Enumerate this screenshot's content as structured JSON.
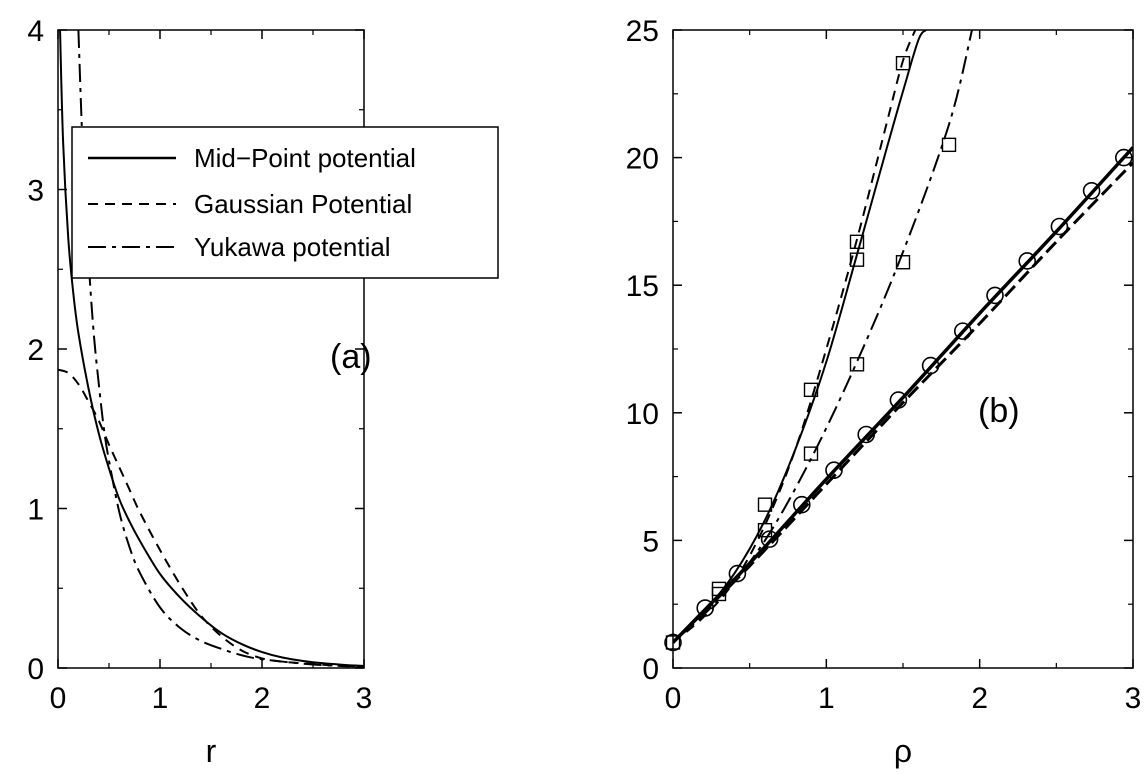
{
  "chart_data": [
    {
      "type": "line",
      "panel_label": "(a)",
      "xlabel": "r",
      "ylabel": "",
      "xlim": [
        0,
        3
      ],
      "ylim": [
        0,
        4
      ],
      "x_ticks": [
        "0",
        "1",
        "2",
        "3"
      ],
      "y_ticks": [
        "0",
        "1",
        "2",
        "3",
        "4"
      ],
      "x_tick_values": [
        0,
        1,
        2,
        3
      ],
      "y_tick_values": [
        0,
        1,
        2,
        3,
        4
      ],
      "legend": "top-right",
      "series": [
        {
          "name": "Mid−Point potential",
          "style": "solid",
          "x": [
            0.02,
            0.05,
            0.1,
            0.15,
            0.2,
            0.3,
            0.4,
            0.5,
            0.6,
            0.7,
            0.8,
            1.0,
            1.2,
            1.4,
            1.6,
            1.8,
            2.0,
            2.2,
            2.5,
            2.8,
            3.0
          ],
          "y": [
            4.0,
            3.3,
            2.7,
            2.35,
            2.1,
            1.75,
            1.47,
            1.25,
            1.06,
            0.92,
            0.8,
            0.59,
            0.44,
            0.32,
            0.22,
            0.15,
            0.1,
            0.066,
            0.036,
            0.02,
            0.013
          ]
        },
        {
          "name": "Gaussian Potential",
          "style": "dashed",
          "x": [
            0.0,
            0.1,
            0.2,
            0.3,
            0.4,
            0.5,
            0.6,
            0.7,
            0.8,
            1.0,
            1.2,
            1.4,
            1.6,
            1.8,
            2.0,
            2.2,
            2.5,
            2.8,
            3.0
          ],
          "y": [
            1.87,
            1.85,
            1.78,
            1.67,
            1.55,
            1.4,
            1.26,
            1.12,
            0.98,
            0.74,
            0.52,
            0.33,
            0.2,
            0.11,
            0.06,
            0.04,
            0.025,
            0.012,
            0.008
          ]
        },
        {
          "name": "Yukawa potential",
          "style": "dashdot",
          "x": [
            0.2,
            0.23,
            0.26,
            0.3,
            0.35,
            0.4,
            0.45,
            0.5,
            0.6,
            0.7,
            0.8,
            1.0,
            1.2,
            1.4,
            1.6,
            1.8,
            2.0,
            2.5,
            3.0
          ],
          "y": [
            4.0,
            3.45,
            3.0,
            2.55,
            2.1,
            1.78,
            1.5,
            1.3,
            0.98,
            0.76,
            0.6,
            0.38,
            0.25,
            0.17,
            0.12,
            0.08,
            0.055,
            0.022,
            0.008
          ]
        }
      ]
    },
    {
      "type": "line",
      "panel_label": "(b)",
      "xlabel": "ρ",
      "ylabel": "",
      "xlim": [
        0,
        3
      ],
      "ylim": [
        0,
        25
      ],
      "x_ticks": [
        "0",
        "1",
        "2",
        "3"
      ],
      "y_ticks": [
        "0",
        "5",
        "10",
        "15",
        "20",
        "25"
      ],
      "x_tick_values": [
        0,
        1,
        2,
        3
      ],
      "y_tick_values": [
        0,
        5,
        10,
        15,
        20,
        25
      ],
      "series": [
        {
          "style": "solid",
          "x": [
            0.0,
            0.2,
            0.4,
            0.6,
            0.8,
            1.0,
            1.2,
            1.4,
            1.5,
            1.6,
            1.65
          ],
          "y": [
            1.0,
            2.2,
            3.7,
            5.8,
            8.6,
            12.0,
            16.2,
            20.5,
            22.6,
            24.6,
            25.0
          ]
        },
        {
          "style": "dashed",
          "x": [
            0.0,
            0.2,
            0.4,
            0.6,
            0.8,
            1.0,
            1.2,
            1.4,
            1.5,
            1.58
          ],
          "y": [
            1.0,
            2.0,
            3.4,
            5.6,
            8.6,
            12.5,
            16.8,
            21.5,
            23.8,
            25.0
          ]
        },
        {
          "style": "dashdot",
          "x": [
            0.0,
            0.3,
            0.6,
            0.9,
            1.2,
            1.5,
            1.8,
            1.95
          ],
          "y": [
            1.0,
            2.7,
            5.0,
            8.2,
            12.0,
            16.3,
            21.3,
            25.0
          ]
        },
        {
          "style": "solid-bold",
          "x": [
            0.0,
            0.5,
            1.0,
            1.5,
            2.0,
            2.5,
            3.0
          ],
          "y": [
            1.0,
            4.1,
            7.4,
            10.6,
            13.9,
            17.1,
            20.4
          ]
        },
        {
          "style": "dashed-bold",
          "x": [
            0.0,
            0.5,
            1.0,
            1.5,
            2.0,
            2.5,
            3.0
          ],
          "y": [
            1.0,
            4.0,
            7.2,
            10.4,
            13.5,
            16.7,
            19.8
          ]
        },
        {
          "style": "circles",
          "x": [
            0.0,
            0.21,
            0.42,
            0.63,
            0.84,
            1.05,
            1.26,
            1.47,
            1.68,
            1.89,
            2.1,
            2.31,
            2.52,
            2.73,
            2.94
          ],
          "y": [
            1.0,
            2.35,
            3.7,
            5.05,
            6.4,
            7.75,
            9.15,
            10.5,
            11.85,
            13.2,
            14.6,
            15.95,
            17.3,
            18.7,
            20.0
          ]
        },
        {
          "style": "squares",
          "x": [
            0.0,
            0.3,
            0.3,
            0.6,
            0.6,
            0.9,
            0.9,
            1.2,
            1.2,
            1.2,
            1.5,
            1.5,
            1.8
          ],
          "y": [
            1.0,
            2.9,
            3.1,
            5.4,
            6.4,
            8.4,
            10.9,
            11.9,
            16.0,
            16.7,
            15.9,
            23.7,
            20.5
          ]
        }
      ]
    }
  ]
}
